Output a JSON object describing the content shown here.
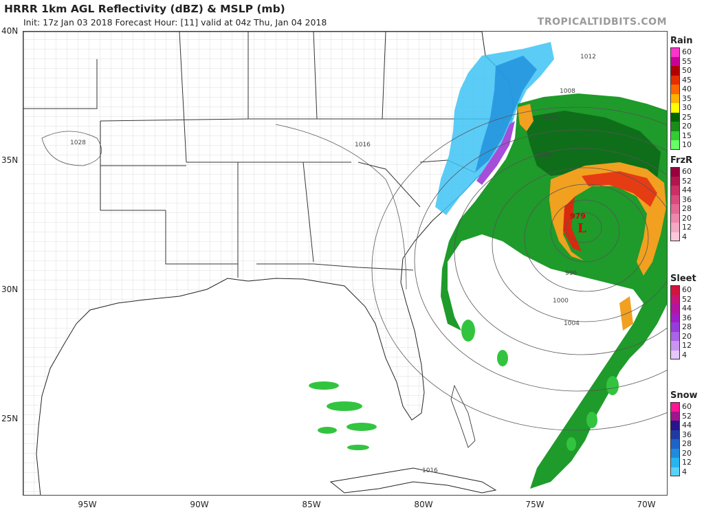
{
  "header": {
    "title": "HRRR 1km AGL Reflectivity (dBZ) & MSLP (mb)",
    "subtitle": "Init: 17z Jan 03 2018   Forecast Hour: [11]   valid at 04z Thu, Jan 04 2018",
    "brand": "TROPICALTIDBITS.COM"
  },
  "axes": {
    "lat_labels": [
      "40N",
      "35N",
      "30N",
      "25N"
    ],
    "lon_labels": [
      "95W",
      "90W",
      "85W",
      "80W",
      "75W",
      "70W"
    ]
  },
  "isobars": {
    "labels": [
      "1028",
      "1016",
      "1012",
      "1008",
      "1004",
      "1000",
      "996",
      "1000",
      "1004",
      "1016"
    ],
    "low_center_pressure": "979",
    "low_symbol": "L"
  },
  "legends": [
    {
      "title": "Rain",
      "levels": [
        "60",
        "55",
        "50",
        "45",
        "40",
        "35",
        "30",
        "25",
        "20",
        "15",
        "10"
      ],
      "colors": [
        "#ff33cc",
        "#cc0099",
        "#b30000",
        "#e62e00",
        "#ff6600",
        "#ffb200",
        "#ffff00",
        "#006600",
        "#1a8c1a",
        "#33cc33",
        "#66ff66"
      ]
    },
    {
      "title": "FrzR",
      "levels": [
        "60",
        "52",
        "44",
        "36",
        "28",
        "20",
        "12",
        "4"
      ],
      "colors": [
        "#99003d",
        "#b3164f",
        "#cc2e66",
        "#d94a7d",
        "#e36894",
        "#ec88ad",
        "#f3a8c4",
        "#fac8dc"
      ]
    },
    {
      "title": "Sleet",
      "levels": [
        "60",
        "52",
        "44",
        "36",
        "28",
        "20",
        "12",
        "4"
      ],
      "colors": [
        "#d2143c",
        "#c81478",
        "#b414a0",
        "#a01ec8",
        "#963cdc",
        "#aa64e6",
        "#c896f0",
        "#e6c8fa"
      ]
    },
    {
      "title": "Snow",
      "levels": [
        "60",
        "52",
        "44",
        "36",
        "28",
        "20",
        "12",
        "4"
      ],
      "colors": [
        "#ff1493",
        "#a0148c",
        "#28148c",
        "#1e3ca0",
        "#1e64c8",
        "#1e8cdc",
        "#28b4f0",
        "#5ad2fa"
      ]
    }
  ]
}
